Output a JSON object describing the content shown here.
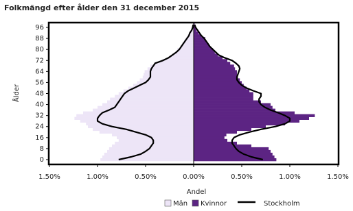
{
  "chart_data": {
    "type": "pyramid",
    "title": "Folkmängd efter ålder den 31 december 2015",
    "x_label": "Andel",
    "y_label": "Ålder",
    "categories": [
      0,
      2,
      4,
      6,
      8,
      10,
      12,
      14,
      16,
      18,
      20,
      22,
      24,
      26,
      28,
      30,
      32,
      34,
      36,
      38,
      40,
      42,
      44,
      46,
      48,
      50,
      52,
      54,
      56,
      58,
      60,
      62,
      64,
      66,
      68,
      70,
      72,
      74,
      76,
      78,
      80,
      82,
      84,
      86,
      88,
      90,
      92,
      94,
      96,
      98
    ],
    "series": [
      {
        "name": "Män",
        "color": "#ede5f7",
        "values": [
          -0.97,
          -0.95,
          -0.93,
          -0.9,
          -0.88,
          -0.85,
          -0.82,
          -0.78,
          -0.8,
          -0.85,
          -0.98,
          -1.05,
          -1.1,
          -1.12,
          -1.18,
          -1.24,
          -1.22,
          -1.15,
          -1.05,
          -1.0,
          -0.95,
          -0.9,
          -0.87,
          -0.82,
          -0.78,
          -0.73,
          -0.68,
          -0.63,
          -0.59,
          -0.56,
          -0.53,
          -0.52,
          -0.51,
          -0.48,
          -0.45,
          -0.41,
          -0.33,
          -0.26,
          -0.22,
          -0.19,
          -0.17,
          -0.14,
          -0.12,
          -0.1,
          -0.08,
          -0.06,
          -0.04,
          -0.02,
          -0.01,
          -0.005
        ]
      },
      {
        "name": "Kvinnor",
        "color": "#5c2483",
        "values": [
          0.86,
          0.84,
          0.82,
          0.8,
          0.78,
          0.6,
          0.45,
          0.35,
          0.32,
          0.34,
          0.45,
          0.6,
          0.75,
          0.95,
          1.1,
          1.2,
          1.26,
          1.05,
          0.85,
          0.82,
          0.8,
          0.7,
          0.62,
          0.62,
          0.62,
          0.58,
          0.55,
          0.52,
          0.5,
          0.48,
          0.46,
          0.45,
          0.45,
          0.43,
          0.42,
          0.38,
          0.35,
          0.3,
          0.25,
          0.22,
          0.2,
          0.17,
          0.15,
          0.13,
          0.12,
          0.08,
          0.05,
          0.03,
          0.02,
          0.01
        ]
      },
      {
        "name": "Stockholm",
        "color": "#000000",
        "men": [
          -0.78,
          -0.65,
          -0.55,
          -0.5,
          -0.46,
          -0.44,
          -0.42,
          -0.42,
          -0.44,
          -0.5,
          -0.6,
          -0.7,
          -0.85,
          -0.95,
          -1.0,
          -1.0,
          -0.98,
          -0.95,
          -0.88,
          -0.82,
          -0.8,
          -0.78,
          -0.76,
          -0.74,
          -0.72,
          -0.68,
          -0.62,
          -0.56,
          -0.5,
          -0.47,
          -0.45,
          -0.45,
          -0.45,
          -0.44,
          -0.42,
          -0.4,
          -0.32,
          -0.26,
          -0.22,
          -0.18,
          -0.15,
          -0.13,
          -0.11,
          -0.09,
          -0.07,
          -0.05,
          -0.04,
          -0.02,
          -0.01,
          -0.005
        ],
        "women": [
          0.72,
          0.6,
          0.52,
          0.47,
          0.44,
          0.42,
          0.4,
          0.4,
          0.42,
          0.48,
          0.58,
          0.7,
          0.85,
          0.95,
          1.0,
          1.0,
          0.95,
          0.88,
          0.8,
          0.74,
          0.7,
          0.68,
          0.68,
          0.7,
          0.7,
          0.62,
          0.55,
          0.5,
          0.47,
          0.45,
          0.45,
          0.46,
          0.47,
          0.48,
          0.47,
          0.44,
          0.4,
          0.32,
          0.26,
          0.23,
          0.2,
          0.17,
          0.15,
          0.13,
          0.11,
          0.08,
          0.06,
          0.04,
          0.02,
          0.01
        ]
      }
    ],
    "xlim": [
      -1.5,
      1.5
    ],
    "xticks": [
      {
        "value": -1.5,
        "label": "1.50%"
      },
      {
        "value": -1,
        "label": "1.00%"
      },
      {
        "value": -0.5,
        "label": "0.50%"
      },
      {
        "value": 0,
        "label": "0.00%"
      },
      {
        "value": 0.5,
        "label": "0.50%"
      },
      {
        "value": 1,
        "label": "1.00%"
      },
      {
        "value": 1.5,
        "label": "1.50%"
      }
    ],
    "ylim": [
      -2,
      100
    ],
    "yticks": [
      0,
      8,
      16,
      24,
      32,
      40,
      48,
      56,
      64,
      72,
      80,
      88,
      96
    ]
  }
}
